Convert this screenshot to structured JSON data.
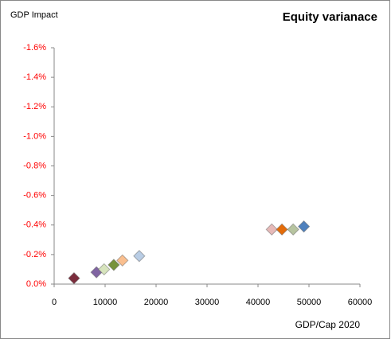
{
  "chart_data": {
    "type": "scatter",
    "title": "Equity varianace",
    "y_label": "GDP Impact",
    "x_label": "GDP/Cap 2020",
    "x": [
      3900,
      8300,
      9800,
      11700,
      13400,
      16700,
      42700,
      44700,
      46900,
      49000
    ],
    "values": [
      -0.04,
      -0.08,
      -0.1,
      -0.13,
      -0.16,
      -0.19,
      -0.37,
      -0.37,
      -0.37,
      -0.39
    ],
    "colors": [
      "#7b2c3c",
      "#8064a2",
      "#d7e4bd",
      "#77933c",
      "#fabf8f",
      "#b9cde5",
      "#e6b9b8",
      "#e46c0a",
      "#b7c4a0",
      "#4f81bd"
    ],
    "xlim": [
      0,
      60000
    ],
    "xticks": [
      0,
      10000,
      20000,
      30000,
      40000,
      50000,
      60000
    ],
    "ylim": [
      0,
      -1.6
    ],
    "yticks": [
      {
        "value": 0,
        "label": "0.0%"
      },
      {
        "value": -0.2,
        "label": "-0.2%"
      },
      {
        "value": -0.4,
        "label": "-0.4%"
      },
      {
        "value": -0.6,
        "label": "-0.6%"
      },
      {
        "value": -0.8,
        "label": "-0.8%"
      },
      {
        "value": -1.0,
        "label": "-1.0%"
      },
      {
        "value": -1.2,
        "label": "-1.2%"
      },
      {
        "value": -1.4,
        "label": "-1.4%"
      },
      {
        "value": -1.6,
        "label": "-1.6%"
      }
    ],
    "grid": false
  }
}
